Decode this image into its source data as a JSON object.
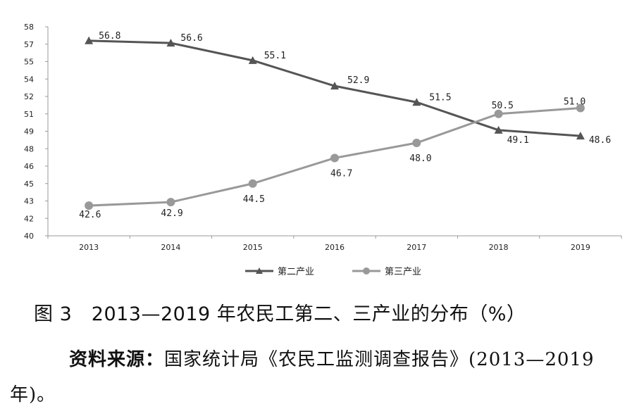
{
  "chart_data": {
    "type": "line",
    "categories": [
      "2013",
      "2014",
      "2015",
      "2016",
      "2017",
      "2018",
      "2019"
    ],
    "series": [
      {
        "name": "第二产业",
        "values": [
          56.8,
          56.6,
          55.1,
          52.9,
          51.5,
          49.1,
          48.6
        ],
        "labels": [
          "56.8",
          "56.6",
          "55.1",
          "52.9",
          "51.5",
          "49.1",
          "48.6"
        ],
        "marker": "triangle",
        "color": "#555555"
      },
      {
        "name": "第三产业",
        "values": [
          42.6,
          42.9,
          44.5,
          46.7,
          48.0,
          50.5,
          51.0
        ],
        "labels": [
          "42.6",
          "42.9",
          "44.5",
          "46.7",
          "48.0",
          "50.5",
          "51.0"
        ],
        "marker": "circle",
        "color": "#999999"
      }
    ],
    "y_ticks": [
      "40",
      "42",
      "43",
      "45",
      "46",
      "48",
      "49",
      "51",
      "52",
      "54",
      "55",
      "57",
      "58"
    ],
    "ylim": [
      40,
      58
    ],
    "grid": false,
    "legend_position": "bottom"
  },
  "caption": {
    "figure_title": "图 3　2013—2019 年农民工第二、三产业的分布（%）",
    "source_label": "资料来源：",
    "source_text": "国家统计局《农民工监测调查报告》(2013—2019 年)。"
  }
}
